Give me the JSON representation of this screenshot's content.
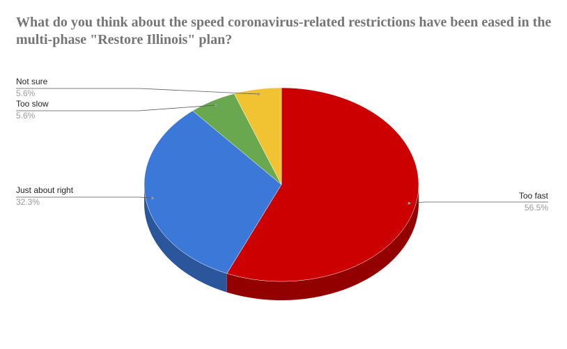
{
  "chart_data": {
    "type": "pie3d",
    "title": "What do you think about the speed coronavirus-related restrictions have been eased in the multi-phase \"Restore Illinois\" plan?",
    "categories": [
      "Too fast",
      "Just about right",
      "Too slow",
      "Not sure"
    ],
    "values": [
      56.5,
      32.3,
      5.6,
      5.6
    ],
    "value_labels": [
      "56.5%",
      "32.3%",
      "5.6%",
      "5.6%"
    ],
    "colors": [
      "#cc0000",
      "#3c78d8",
      "#6aa84f",
      "#f1c232"
    ]
  }
}
